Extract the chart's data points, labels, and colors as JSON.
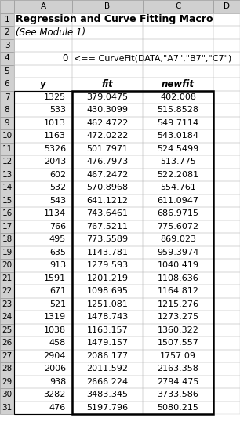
{
  "title": "Regression and Curve Fitting Macro",
  "subtitle": "(See Module 1)",
  "row_4_val": "0",
  "row_4_formula": "<== CurveFit(DATA,\"A7\",\"B7\",\"C7\")",
  "col_headers": [
    "y",
    "fit",
    "newfit"
  ],
  "y": [
    1325,
    533,
    1013,
    1163,
    5326,
    2043,
    602,
    532,
    543,
    1134,
    766,
    495,
    635,
    913,
    1591,
    671,
    521,
    1319,
    1038,
    458,
    2904,
    2006,
    938,
    3282,
    476
  ],
  "fit": [
    "379.0475",
    "430.3099",
    "462.4722",
    "472.0222",
    "501.7971",
    "476.7973",
    "467.2472",
    "570.8968",
    "641.1212",
    "743.6461",
    "767.5211",
    "773.5589",
    "1143.781",
    "1279.593",
    "1201.219",
    "1098.695",
    "1251.081",
    "1478.743",
    "1163.157",
    "1479.157",
    "2086.177",
    "2011.592",
    "2666.224",
    "3483.345",
    "5197.796"
  ],
  "newfit": [
    "402.008",
    "515.8528",
    "549.7114",
    "543.0184",
    "524.5499",
    "513.775",
    "522.2081",
    "554.761",
    "611.0947",
    "686.9715",
    "775.6072",
    "869.023",
    "959.3974",
    "1040.419",
    "1108.636",
    "1164.812",
    "1215.276",
    "1273.275",
    "1360.322",
    "1507.557",
    "1757.09",
    "2163.358",
    "2794.475",
    "3733.586",
    "5080.215"
  ],
  "bg_color": "#ffffff",
  "col_header_bg": "#d0d0d0",
  "col_header_border": "#a0a0a0",
  "cell_bg": "#ffffff",
  "cell_border": "#c8c8c8",
  "thick_border": "#000000",
  "text_color": "#000000",
  "font_size_title": 9.0,
  "font_size_subtitle": 8.5,
  "font_size_formula": 8.0,
  "font_size_colhdr": 8.5,
  "font_size_data": 8.0,
  "font_size_rownum": 7.5
}
